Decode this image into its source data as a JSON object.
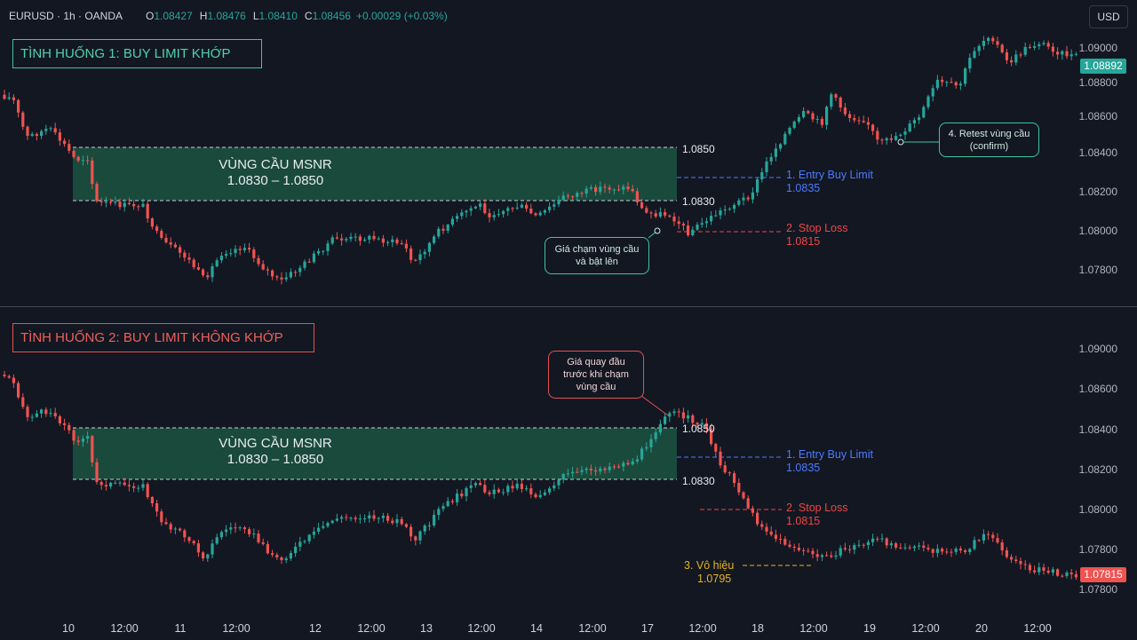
{
  "header": {
    "symbol": "EURUSD · 1h · OANDA",
    "open_k": "O",
    "open": "1.08427",
    "high_k": "H",
    "high": "1.08476",
    "low_k": "L",
    "low": "1.08410",
    "close_k": "C",
    "close": "1.08456",
    "change": "+0.00029 (+0.03%)"
  },
  "currency_button": "USD",
  "colors": {
    "bg": "#131722",
    "up": "#26a69a",
    "down": "#ef5350",
    "zone": "#1a4a3c"
  },
  "panel1": {
    "title": "TÌNH HUỐNG 1: BUY LIMIT KHỚP",
    "zone_title": "VÙNG CẦU MSNR",
    "zone_range": "1.0830 – 1.0850",
    "upper": "1.0850",
    "lower": "1.0830",
    "entry_label": "1. Entry Buy Limit",
    "entry_price": "1.0835",
    "stop_label": "2. Stop Loss",
    "stop_price": "1.0815",
    "callout_a": [
      "Giá chạm vùng cầu",
      "và bật lên"
    ],
    "callout_b": [
      "4. Retest vùng cầu",
      "(confirm)"
    ],
    "y_labels": [
      "1.09000",
      "1.08800",
      "1.08600",
      "1.08400",
      "1.08200",
      "1.08000",
      "1.07800"
    ],
    "price_tag": "1.08892"
  },
  "panel2": {
    "title": "TÌNH HUỐNG 2: BUY LIMIT KHÔNG KHỚP",
    "zone_title": "VÙNG CẦU MSNR",
    "zone_range": "1.0830 – 1.0850",
    "upper": "1.0850",
    "lower": "1.0830",
    "entry_label": "1. Entry Buy Limit",
    "entry_price": "1.0835",
    "stop_label": "2. Stop Loss",
    "stop_price": "1.0815",
    "invalid_label": "3. Vô hiệu",
    "invalid_price": "1.0795",
    "callout": [
      "Giá quay đầu",
      "trước khi chạm",
      "vùng cầu"
    ],
    "y_labels": [
      "1.09000",
      "1.08600",
      "1.08400",
      "1.08200",
      "1.08000",
      "1.07800"
    ],
    "price_tag": "1.07815"
  },
  "x_axis": [
    "10",
    "12:00",
    "11",
    "12:00",
    "12",
    "12:00",
    "13",
    "12:00",
    "14",
    "12:00",
    "17",
    "12:00",
    "18",
    "12:00",
    "19",
    "12:00",
    "20",
    "12:00"
  ]
}
